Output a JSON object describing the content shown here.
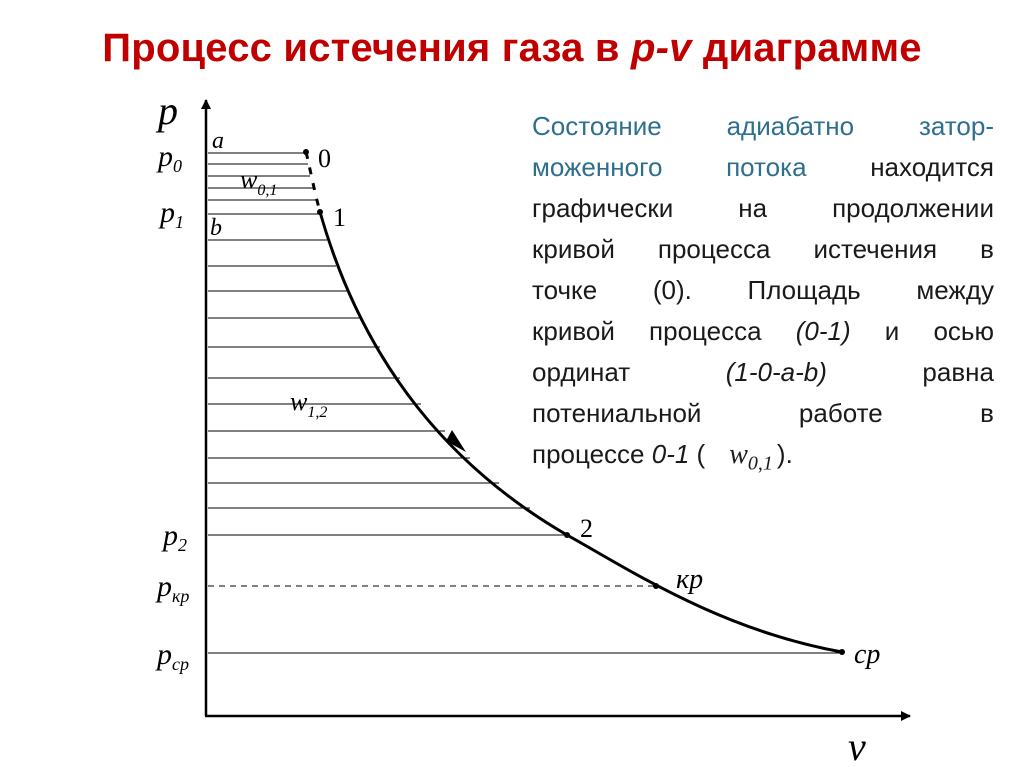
{
  "title": {
    "main": "Процесс истечения газа в ",
    "highlight": "p-v",
    "suffix": " диаграмме"
  },
  "diagram": {
    "axis_labels": {
      "p": "p",
      "v": "v"
    },
    "pressure_labels": {
      "p0": {
        "base": "p",
        "sub": "0"
      },
      "p1": {
        "base": "p",
        "sub": "1"
      },
      "p2": {
        "base": "p",
        "sub": "2"
      },
      "pkr": {
        "base": "p",
        "sub": "кр"
      },
      "pcr": {
        "base": "p",
        "sub": "ср"
      }
    },
    "point_labels": {
      "a": "a",
      "b": "b",
      "pt0": "0",
      "pt1": "1",
      "pt2": "2",
      "kr": "кр",
      "cr": "ср"
    },
    "work_labels": {
      "w01": {
        "base": "w",
        "sub": "0,1"
      },
      "w12": {
        "base": "w",
        "sub": "1,2"
      }
    }
  },
  "description": {
    "line1": [
      "Состояние",
      "адиабатно",
      "затор-"
    ],
    "line2a": [
      "моженного",
      "потока"
    ],
    "line2b": "находится",
    "line3": [
      "графически",
      "на",
      "продолжении"
    ],
    "line4": [
      "кривой",
      "процесса",
      "истечения",
      "в"
    ],
    "line5": [
      "точке",
      "(0).",
      "Площадь",
      "между"
    ],
    "line6a": [
      "кривой",
      "процесса"
    ],
    "line6b": "(0-1)",
    "line6c": [
      "и",
      "осью"
    ],
    "line7a": "ординат",
    "line7b": "(1-0-a-b)",
    "line7c": "равна",
    "line8": [
      "потениальной",
      "работе",
      "в"
    ],
    "line9a": "процессе ",
    "line9b": "0-1",
    "line9c": " (",
    "line9_math": {
      "base": "w",
      "sub": "0,1"
    },
    "line9d": ")."
  }
}
